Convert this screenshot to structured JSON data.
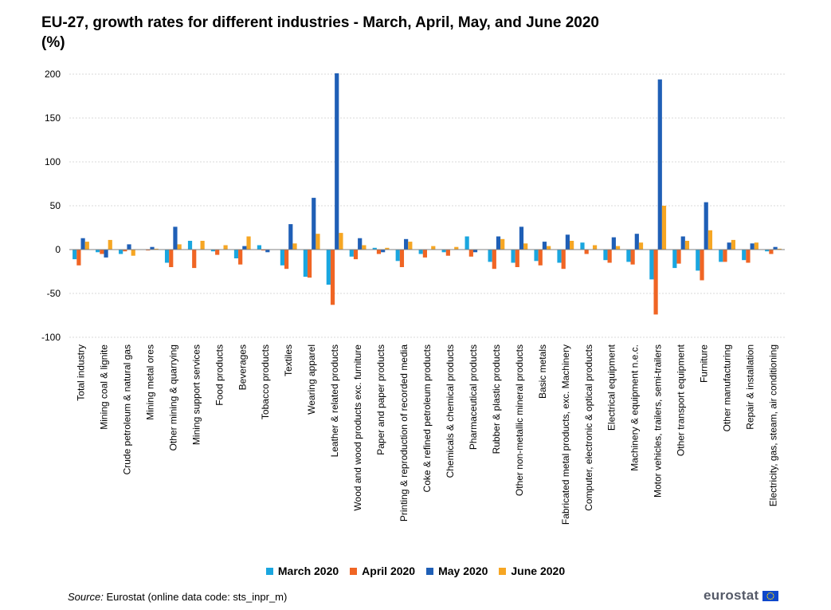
{
  "title": "EU-27, growth rates for different industries  - March, April, May, and June 2020",
  "subtitle": "(%)",
  "source_label": "Source:",
  "source_text": "Eurostat (online data code: sts_inpr_m)",
  "logo": {
    "text": "eurostat",
    "icon": "eu-flag-icon"
  },
  "colors": {
    "March 2020": "#1aa6df",
    "April 2020": "#f06524",
    "May 2020": "#1f5fb6",
    "June 2020": "#f6a623",
    "grid": "#d9d9d9",
    "axis": "#808080"
  },
  "chart_data": {
    "type": "bar",
    "title": "EU-27, growth rates for different industries  - March, April, May, and June 2020",
    "subtitle": "(%)",
    "xlabel": "",
    "ylabel": "",
    "ylim": [
      -100,
      200
    ],
    "yticks": [
      -100,
      -50,
      0,
      50,
      100,
      150,
      200
    ],
    "grid": true,
    "legend_position": "bottom",
    "categories": [
      "Total industry",
      "Mining coal & lignite",
      "Crude petroleum & natural gas",
      "Mining metal ores",
      "Other mining & quarrying",
      "Mining support services",
      "Food products",
      "Beverages",
      "Tobacco products",
      "Textiles",
      "Wearing apparel",
      "Leather & related products",
      "Wood and wood products exc. furniture",
      "Paper and paper products",
      "Printing & reproduction of recorded media",
      "Coke & refined petroleum products",
      "Chemicals & chemical products",
      "Pharmaceutical products",
      "Rubber & plastic products",
      "Other non-metallic mineral products",
      "Basic metals",
      "Fabricated metal products, exc. Machinery",
      "Computer, electronic & optical products",
      "Electrical equipment",
      "Machinery & equipment n.e.c.",
      "Motor vehicles, trailers, semi-trailers",
      "Other transport equipment",
      "Furniture",
      "Other manufacturing",
      "Repair & installation",
      "Electricity, gas, steam, air conditioning"
    ],
    "series": [
      {
        "name": "March 2020",
        "values": [
          -11,
          -3,
          -5,
          0,
          -15,
          10,
          -2,
          -10,
          5,
          -18,
          -31,
          -40,
          -8,
          2,
          -13,
          -5,
          -3,
          15,
          -14,
          -15,
          -13,
          -15,
          8,
          -12,
          -14,
          -34,
          -21,
          -24,
          -14,
          -12,
          -2
        ]
      },
      {
        "name": "April 2020",
        "values": [
          -18,
          -5,
          -2,
          -1,
          -20,
          -21,
          -6,
          -17,
          -1,
          -22,
          -32,
          -63,
          -11,
          -5,
          -20,
          -9,
          -7,
          -8,
          -22,
          -20,
          -18,
          -22,
          -5,
          -15,
          -17,
          -74,
          -16,
          -35,
          -14,
          -15,
          -5
        ]
      },
      {
        "name": "May 2020",
        "values": [
          13,
          -9,
          6,
          3,
          26,
          0,
          0,
          4,
          -3,
          29,
          59,
          201,
          13,
          -3,
          12,
          0,
          0,
          -3,
          15,
          26,
          9,
          17,
          0,
          14,
          18,
          194,
          15,
          54,
          8,
          7,
          3
        ]
      },
      {
        "name": "June 2020",
        "values": [
          9,
          11,
          -7,
          1,
          6,
          10,
          5,
          15,
          0,
          7,
          18,
          19,
          5,
          2,
          9,
          4,
          3,
          0,
          12,
          7,
          4,
          10,
          5,
          4,
          8,
          50,
          10,
          22,
          11,
          8,
          1
        ]
      }
    ]
  }
}
